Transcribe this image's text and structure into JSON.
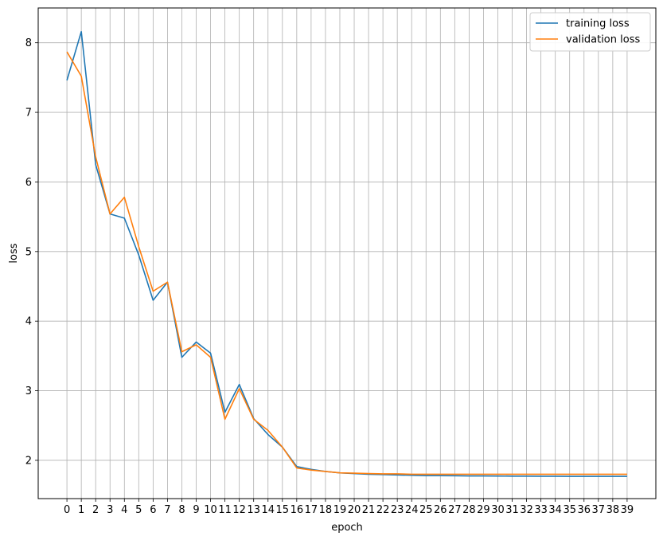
{
  "chart_data": {
    "type": "line",
    "title": "",
    "xlabel": "epoch",
    "ylabel": "loss",
    "x": [
      0,
      1,
      2,
      3,
      4,
      5,
      6,
      7,
      8,
      9,
      10,
      11,
      12,
      13,
      14,
      15,
      16,
      17,
      18,
      19,
      20,
      21,
      22,
      23,
      24,
      25,
      26,
      27,
      28,
      29,
      30,
      31,
      32,
      33,
      34,
      35,
      36,
      37,
      38,
      39
    ],
    "x_ticks": [
      "0",
      "1",
      "2",
      "3",
      "4",
      "5",
      "6",
      "7",
      "8",
      "9",
      "10",
      "11",
      "12",
      "13",
      "14",
      "15",
      "16",
      "17",
      "18",
      "19",
      "20",
      "21",
      "22",
      "23",
      "24",
      "25",
      "26",
      "27",
      "28",
      "29",
      "30",
      "31",
      "32",
      "33",
      "34",
      "35",
      "36",
      "37",
      "38",
      "39"
    ],
    "y_ticks": [
      "2",
      "3",
      "4",
      "5",
      "6",
      "7",
      "8"
    ],
    "xlim": [
      -2.0,
      41.0
    ],
    "ylim": [
      1.45,
      8.5
    ],
    "grid": true,
    "legend_position": "upper right",
    "series": [
      {
        "name": "training loss",
        "color": "#1f77b4",
        "values": [
          7.46,
          8.16,
          6.25,
          5.54,
          5.48,
          4.95,
          4.3,
          4.56,
          3.48,
          3.7,
          3.54,
          2.69,
          3.09,
          2.6,
          2.37,
          2.19,
          1.91,
          1.87,
          1.84,
          1.82,
          1.81,
          1.8,
          1.795,
          1.79,
          1.785,
          1.78,
          1.78,
          1.778,
          1.776,
          1.775,
          1.774,
          1.773,
          1.772,
          1.771,
          1.771,
          1.77,
          1.77,
          1.77,
          1.77,
          1.77
        ]
      },
      {
        "name": "validation loss",
        "color": "#ff7f0e",
        "values": [
          7.87,
          7.52,
          6.36,
          5.54,
          5.78,
          5.07,
          4.43,
          4.56,
          3.56,
          3.66,
          3.48,
          2.59,
          3.03,
          2.59,
          2.43,
          2.19,
          1.89,
          1.86,
          1.84,
          1.82,
          1.815,
          1.81,
          1.805,
          1.805,
          1.8,
          1.8,
          1.8,
          1.8,
          1.8,
          1.8,
          1.8,
          1.8,
          1.8,
          1.8,
          1.8,
          1.8,
          1.8,
          1.8,
          1.8,
          1.8
        ]
      }
    ]
  }
}
